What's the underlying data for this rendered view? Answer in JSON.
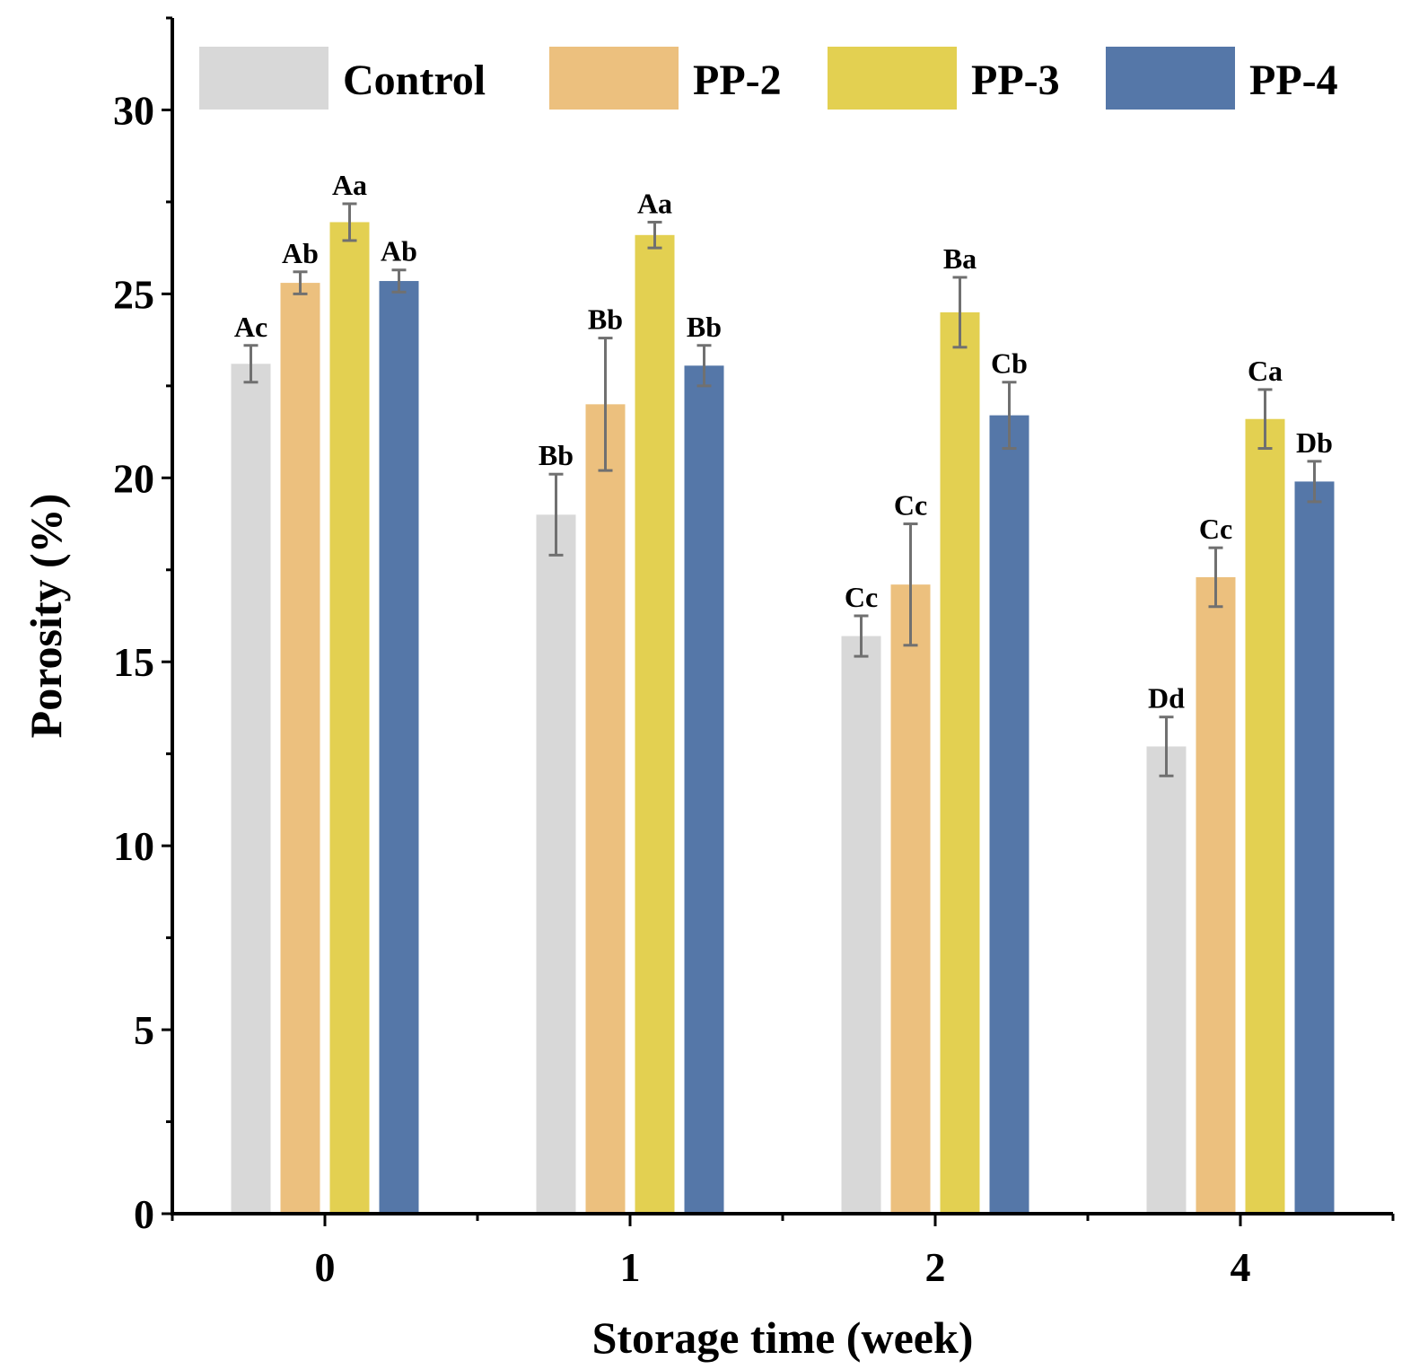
{
  "chart_data": {
    "type": "bar",
    "title": "",
    "xlabel": "Storage time (week)",
    "ylabel": "Porosity (%)",
    "ylim": [
      0,
      32.5
    ],
    "yticks": [
      0,
      5,
      10,
      15,
      20,
      25,
      30
    ],
    "grid": false,
    "legend_position": "top",
    "categories": [
      "0",
      "1",
      "2",
      "4"
    ],
    "series": [
      {
        "name": "Control",
        "color": "#d8d8d8",
        "values": [
          23.1,
          19.0,
          15.7,
          12.7
        ],
        "errors": [
          0.5,
          1.1,
          0.55,
          0.8
        ],
        "labels": [
          "Ac",
          "Bb",
          "Cc",
          "Dd"
        ]
      },
      {
        "name": "PP-2",
        "color": "#ecc07e",
        "values": [
          25.3,
          22.0,
          17.1,
          17.3
        ],
        "errors": [
          0.3,
          1.8,
          1.65,
          0.8
        ],
        "labels": [
          "Ab",
          "Bb",
          "Cc",
          "Cc"
        ]
      },
      {
        "name": "PP-3",
        "color": "#e3d051",
        "values": [
          26.95,
          26.6,
          24.5,
          21.6
        ],
        "errors": [
          0.5,
          0.35,
          0.95,
          0.8
        ],
        "labels": [
          "Aa",
          "Aa",
          "Ba",
          "Ca"
        ]
      },
      {
        "name": "PP-4",
        "color": "#5577a8",
        "values": [
          25.35,
          23.05,
          21.7,
          19.9
        ],
        "errors": [
          0.3,
          0.55,
          0.9,
          0.55
        ],
        "labels": [
          "Ab",
          "Bb",
          "Cb",
          "Db"
        ]
      }
    ]
  },
  "colors": {
    "axis": "#000000",
    "error_bar": "#707070"
  }
}
